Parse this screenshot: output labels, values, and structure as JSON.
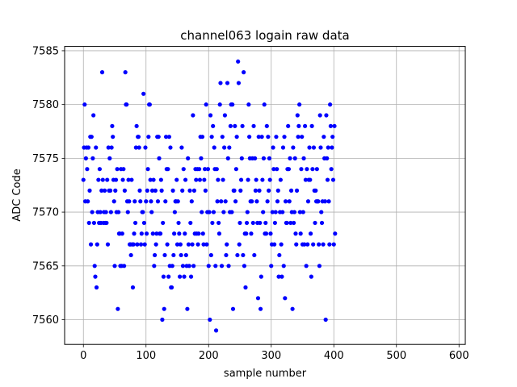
{
  "chart_data": {
    "type": "scatter",
    "title": "channel063 logain raw data",
    "xlabel": "sample number",
    "ylabel": "ADC Code",
    "xlim": [
      -30,
      610
    ],
    "ylim": [
      7557.7,
      7585.4
    ],
    "xticks": [
      0,
      100,
      200,
      300,
      400,
      500,
      600
    ],
    "yticks": [
      7560,
      7565,
      7570,
      7575,
      7580,
      7585
    ],
    "grid": true,
    "marker_color": "#0000ff",
    "series": [
      {
        "values": [
          7573,
          7576,
          7580,
          7571,
          7575,
          7576,
          7574,
          7571,
          7576,
          7569,
          7572,
          7577,
          7567,
          7577,
          7570,
          7575,
          7579,
          7569,
          7565,
          7564,
          7576,
          7563,
          7567,
          7570,
          7573,
          7569,
          7574,
          7570,
          7569,
          7572,
          7583,
          7573,
          7569,
          7570,
          7572,
          7569,
          7570,
          7569,
          7573,
          7567,
          7576,
          7572,
          7575,
          7572,
          7570,
          7576,
          7578,
          7577,
          7573,
          7571,
          7565,
          7572,
          7573,
          7570,
          7574,
          7561,
          7570,
          7568,
          7568,
          7565,
          7574,
          7565,
          7568,
          7573,
          7574,
          7565,
          7572,
          7583,
          7580,
          7580,
          7571,
          7570,
          7573,
          7571,
          7567,
          7567,
          7566,
          7573,
          7567,
          7563,
          7567,
          7568,
          7571,
          7569,
          7576,
          7578,
          7567,
          7577,
          7577,
          7576,
          7572,
          7571,
          7567,
          7568,
          7570,
          7570,
          7581,
          7569,
          7567,
          7576,
          7571,
          7568,
          7572,
          7574,
          7577,
          7580,
          7580,
          7573,
          7571,
          7570,
          7572,
          7568,
          7573,
          7565,
          7566,
          7572,
          7567,
          7568,
          7577,
          7571,
          7577,
          7575,
          7568,
          7568,
          7573,
          7572,
          7560,
          7569,
          7564,
          7561,
          7566,
          7571,
          7577,
          7574,
          7567,
          7574,
          7564,
          7577,
          7565,
          7576,
          7563,
          7563,
          7565,
          7572,
          7566,
          7568,
          7570,
          7571,
          7571,
          7573,
          7567,
          7571,
          7569,
          7568,
          7564,
          7567,
          7566,
          7576,
          7572,
          7565,
          7574,
          7564,
          7568,
          7573,
          7566,
          7565,
          7561,
          7575,
          7567,
          7565,
          7572,
          7569,
          7564,
          7571,
          7567,
          7579,
          7565,
          7572,
          7568,
          7574,
          7573,
          7568,
          7574,
          7567,
          7568,
          7574,
          7573,
          7577,
          7575,
          7570,
          7577,
          7568,
          7567,
          7573,
          7574,
          7572,
          7580,
          7567,
          7570,
          7574,
          7565,
          7570,
          7560,
          7579,
          7566,
          7577,
          7569,
          7578,
          7570,
          7576,
          7574,
          7565,
          7559,
          7574,
          7571,
          7573,
          7569,
          7568,
          7580,
          7582,
          7571,
          7565,
          7577,
          7573,
          7570,
          7576,
          7579,
          7571,
          7566,
          7567,
          7582,
          7575,
          7565,
          7576,
          7570,
          7578,
          7580,
          7570,
          7580,
          7561,
          7572,
          7572,
          7578,
          7571,
          7574,
          7577,
          7566,
          7584,
          7582,
          7567,
          7569,
          7572,
          7573,
          7575,
          7578,
          7566,
          7583,
          7565,
          7568,
          7563,
          7568,
          7569,
          7570,
          7573,
          7580,
          7577,
          7575,
          7571,
          7568,
          7571,
          7575,
          7569,
          7578,
          7566,
          7575,
          7572,
          7573,
          7571,
          7569,
          7562,
          7577,
          7572,
          7569,
          7561,
          7564,
          7577,
          7573,
          7570,
          7575,
          7580,
          7568,
          7569,
          7568,
          7578,
          7571,
          7577,
          7572,
          7575,
          7573,
          7568,
          7565,
          7567,
          7570,
          7576,
          7574,
          7567,
          7569,
          7570,
          7577,
          7574,
          7571,
          7572,
          7564,
          7566,
          7570,
          7573,
          7567,
          7564,
          7570,
          7576,
          7565,
          7577,
          7562,
          7571,
          7569,
          7569,
          7574,
          7578,
          7574,
          7571,
          7575,
          7569,
          7572,
          7570,
          7561,
          7576,
          7569,
          7570,
          7575,
          7568,
          7567,
          7572,
          7579,
          7577,
          7578,
          7580,
          7570,
          7568,
          7574,
          7577,
          7567,
          7570,
          7575,
          7567,
          7578,
          7573,
          7565,
          7574,
          7567,
          7571,
          7573,
          7576,
          7573,
          7568,
          7564,
          7578,
          7574,
          7567,
          7576,
          7572,
          7569,
          7572,
          7571,
          7574,
          7571,
          7571,
          7567,
          7565,
          7579,
          7576,
          7570,
          7569,
          7571,
          7567,
          7577,
          7575,
          7571,
          7560,
          7579,
          7575,
          7573,
          7576,
          7571,
          7567,
          7580,
          7578,
          7574,
          7576,
          7577,
          7573,
          7567,
          7578,
          7568
        ]
      }
    ]
  }
}
